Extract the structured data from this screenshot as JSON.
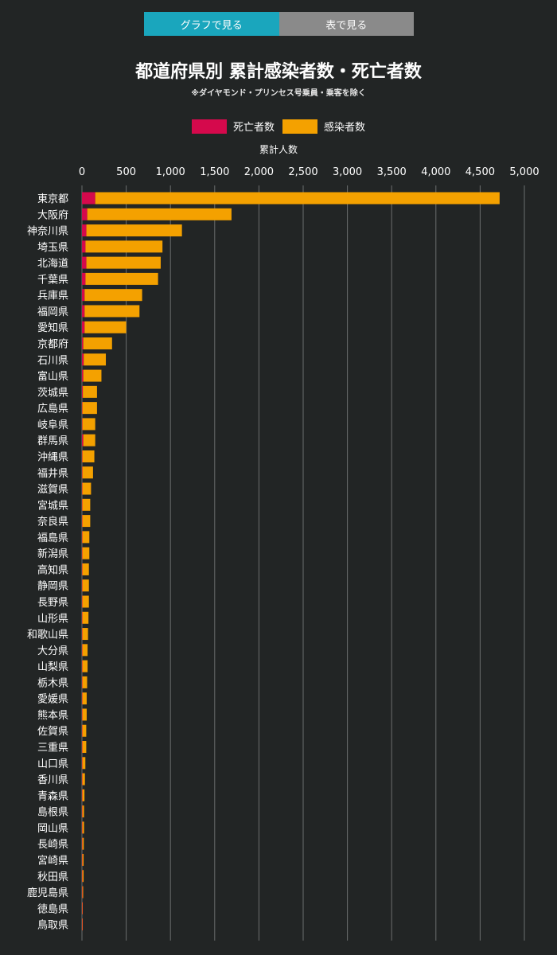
{
  "toggle": {
    "graph_label": "グラフで見る",
    "table_label": "表で見る",
    "active_color": "#1aa6bd",
    "inactive_color": "#8a8a8a"
  },
  "chart_data": {
    "type": "bar",
    "orientation": "horizontal",
    "stacked": true,
    "title": "都道府県別 累計感染者数・死亡者数",
    "subtitle": "※ダイヤモンド・プリンセス号乗員・乗客を除く",
    "xlabel": "累計人数",
    "ylabel": "",
    "xlim": [
      0,
      5000
    ],
    "xticks": [
      0,
      500,
      1000,
      1500,
      2000,
      2500,
      3000,
      3500,
      4000,
      4500,
      5000
    ],
    "xtick_labels": [
      "0",
      "500",
      "1,000",
      "1,500",
      "2,000",
      "2,500",
      "3,000",
      "3,500",
      "4,000",
      "4,500",
      "5,000"
    ],
    "grid": true,
    "legend_position": "top-center",
    "categories": [
      "東京都",
      "大阪府",
      "神奈川県",
      "埼玉県",
      "北海道",
      "千葉県",
      "兵庫県",
      "福岡県",
      "愛知県",
      "京都府",
      "石川県",
      "富山県",
      "茨城県",
      "広島県",
      "岐阜県",
      "群馬県",
      "沖縄県",
      "福井県",
      "滋賀県",
      "宮城県",
      "奈良県",
      "福島県",
      "新潟県",
      "高知県",
      "静岡県",
      "長野県",
      "山形県",
      "和歌山県",
      "大分県",
      "山梨県",
      "栃木県",
      "愛媛県",
      "熊本県",
      "佐賀県",
      "三重県",
      "山口県",
      "香川県",
      "青森県",
      "島根県",
      "岡山県",
      "長崎県",
      "宮崎県",
      "秋田県",
      "鹿児島県",
      "徳島県",
      "鳥取県"
    ],
    "series": [
      {
        "name": "死亡者数",
        "color": "#d5094c",
        "values": [
          150,
          60,
          50,
          40,
          50,
          40,
          30,
          30,
          30,
          15,
          20,
          15,
          10,
          5,
          5,
          15,
          5,
          5,
          2,
          1,
          1,
          1,
          1,
          1,
          1,
          1,
          1,
          1,
          1,
          1,
          1,
          1,
          1,
          1,
          1,
          1,
          1,
          1,
          1,
          1,
          1,
          1,
          1,
          1,
          1,
          1
        ]
      },
      {
        "name": "感染者数",
        "color": "#f4a100",
        "values": [
          4720,
          1690,
          1130,
          910,
          890,
          860,
          680,
          650,
          500,
          340,
          270,
          220,
          170,
          170,
          150,
          150,
          140,
          125,
          100,
          90,
          90,
          80,
          80,
          75,
          75,
          75,
          70,
          65,
          60,
          60,
          55,
          50,
          50,
          45,
          45,
          35,
          30,
          25,
          20,
          20,
          17,
          15,
          15,
          10,
          5,
          3
        ]
      }
    ]
  }
}
